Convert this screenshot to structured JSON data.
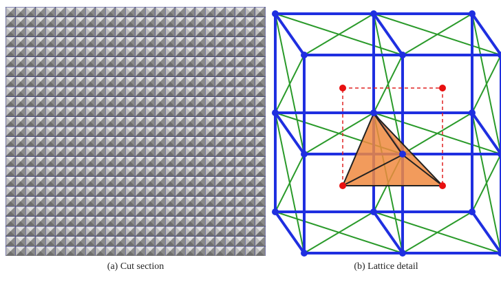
{
  "figure": {
    "subfigures": [
      {
        "caption": "(a) Cut section"
      },
      {
        "caption": "(b) Lattice detail"
      }
    ]
  }
}
